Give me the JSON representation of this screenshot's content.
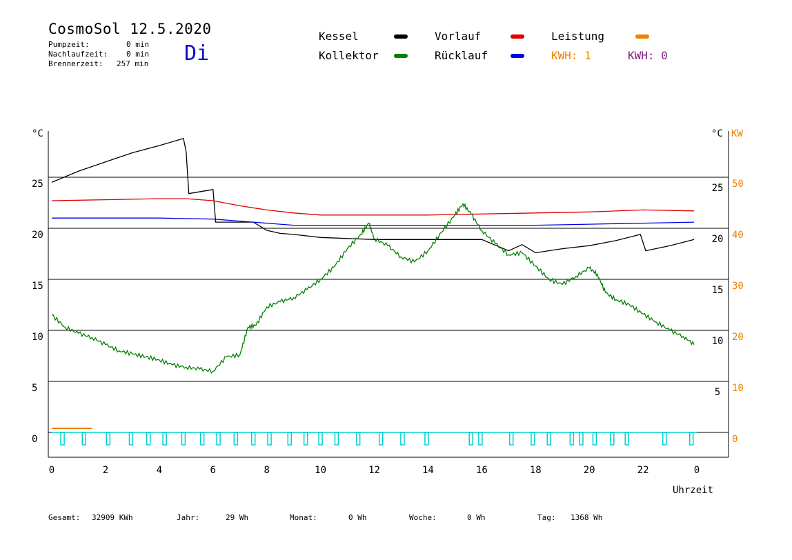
{
  "header": {
    "title": "CosmoSol 12.5.2020",
    "day": "Di",
    "pumpzeit_label": "Pumpzeit:",
    "pumpzeit_value": "0 min",
    "nachlaufzeit_label": "Nachlaufzeit:",
    "nachlaufzeit_value": "0 min",
    "brennerzeit_label": "Brennerzeit:",
    "brennerzeit_value": "257 min"
  },
  "legend": {
    "kessel": "Kessel",
    "kollektor": "Kollektor",
    "vorlauf": "Vorlauf",
    "ruecklauf": "Rücklauf",
    "leistung": "Leistung",
    "kwh1": "KWH: 1",
    "kwh2": "KWH: 0"
  },
  "colors": {
    "kessel": "#000000",
    "kollektor": "#008000",
    "vorlauf": "#e00000",
    "ruecklauf": "#0000e0",
    "leistung": "#f08000",
    "pump": "#00d0d0",
    "kwh2": "#802080"
  },
  "footer": {
    "gesamt_label": "Gesamt:",
    "gesamt_value": "32909 KWh",
    "jahr_label": "Jahr:",
    "jahr_value": "29 Wh",
    "monat_label": "Monat:",
    "monat_value": "0 Wh",
    "woche_label": "Woche:",
    "woche_value": "0 Wh",
    "tag_label": "Tag:",
    "tag_value": "1368 Wh"
  },
  "chart_data": {
    "type": "line",
    "xlabel": "Uhrzeit",
    "ylabel_left": "°C",
    "ylabel_right": "°C",
    "ylabel_kw": "KW",
    "xlim": [
      0,
      24
    ],
    "ylim": [
      -2.5,
      30
    ],
    "x_ticks": [
      "0",
      "2",
      "4",
      "6",
      "8",
      "10",
      "12",
      "14",
      "16",
      "18",
      "20",
      "22",
      "0"
    ],
    "left_ticks": [
      0,
      5,
      10,
      15,
      20,
      25
    ],
    "right_ticks": [
      5,
      10,
      15,
      20,
      25
    ],
    "kw_ticks": [
      0,
      10,
      20,
      30,
      40,
      50
    ],
    "grid": true,
    "series": [
      {
        "name": "Kessel",
        "key": "kessel",
        "x": [
          0,
          1,
          2,
          3,
          4,
          4.9,
          5.0,
          5.1,
          6.0,
          6.1,
          7.5,
          8.0,
          8.5,
          9.0,
          10.0,
          11.0,
          12.0,
          13.0,
          14.0,
          15.0,
          16.0,
          17.0,
          17.5,
          18.0,
          19.0,
          20.0,
          21.0,
          21.9,
          22.1,
          23.0,
          23.9
        ],
        "values": [
          24.5,
          25.6,
          26.5,
          27.4,
          28.1,
          28.8,
          27.5,
          23.4,
          23.8,
          20.6,
          20.6,
          19.8,
          19.5,
          19.4,
          19.1,
          19.0,
          18.9,
          18.9,
          18.9,
          18.9,
          18.9,
          17.8,
          18.4,
          17.6,
          18.0,
          18.3,
          18.8,
          19.4,
          17.8,
          18.3,
          18.9
        ]
      },
      {
        "name": "Vorlauf",
        "key": "vorlauf",
        "x": [
          0,
          2,
          4,
          5,
          6,
          7,
          8,
          9,
          10,
          12,
          14,
          16,
          18,
          20,
          22,
          23.9
        ],
        "values": [
          22.7,
          22.8,
          22.9,
          22.9,
          22.7,
          22.2,
          21.8,
          21.5,
          21.3,
          21.3,
          21.3,
          21.4,
          21.5,
          21.6,
          21.8,
          21.7
        ]
      },
      {
        "name": "Rücklauf",
        "key": "ruecklauf",
        "x": [
          0,
          2,
          4,
          6,
          7,
          8,
          9,
          10,
          12,
          14,
          16,
          18,
          20,
          22,
          23.9
        ],
        "values": [
          21.0,
          21.0,
          21.0,
          20.9,
          20.7,
          20.5,
          20.3,
          20.3,
          20.3,
          20.3,
          20.3,
          20.3,
          20.4,
          20.5,
          20.6
        ]
      },
      {
        "name": "Kollektor",
        "key": "kollektor",
        "x": [
          0,
          0.5,
          1,
          1.5,
          2,
          2.5,
          3,
          3.5,
          4,
          4.5,
          5,
          5.5,
          6,
          6.5,
          7,
          7.3,
          7.6,
          8,
          8.5,
          9,
          9.5,
          10,
          10.5,
          11,
          11.5,
          11.8,
          12,
          12.5,
          13,
          13.5,
          14,
          14.5,
          15,
          15.3,
          15.6,
          16,
          16.5,
          17,
          17.5,
          18,
          18.5,
          19,
          19.5,
          20,
          20.3,
          20.6,
          21,
          21.5,
          22,
          22.5,
          23,
          23.5,
          23.9
        ],
        "values": [
          11.5,
          10.3,
          9.7,
          9.3,
          8.6,
          8.0,
          7.7,
          7.4,
          7.1,
          6.6,
          6.4,
          6.2,
          6.0,
          7.4,
          7.6,
          10.3,
          10.5,
          12.3,
          12.8,
          13.2,
          14.0,
          15.0,
          16.2,
          18.0,
          19.4,
          20.5,
          19.0,
          18.3,
          17.2,
          16.7,
          17.8,
          19.6,
          21.3,
          22.4,
          21.4,
          19.8,
          18.5,
          17.4,
          17.6,
          16.3,
          15.0,
          14.5,
          15.3,
          16.1,
          15.5,
          13.7,
          13.0,
          12.5,
          11.6,
          10.8,
          10.0,
          9.4,
          8.6
        ]
      },
      {
        "name": "Leistung",
        "key": "leistung",
        "x": [
          0,
          1.5
        ],
        "values": [
          0.4,
          0.4
        ]
      }
    ],
    "pump_pulses": [
      0.4,
      1.2,
      2.1,
      2.95,
      3.6,
      4.2,
      4.9,
      5.6,
      6.2,
      6.85,
      7.5,
      8.1,
      8.85,
      9.45,
      10.0,
      10.6,
      11.4,
      12.25,
      13.05,
      13.95,
      15.6,
      15.95,
      17.1,
      17.9,
      18.5,
      19.35,
      19.7,
      20.2,
      20.85,
      21.4,
      22.8,
      23.8
    ]
  }
}
